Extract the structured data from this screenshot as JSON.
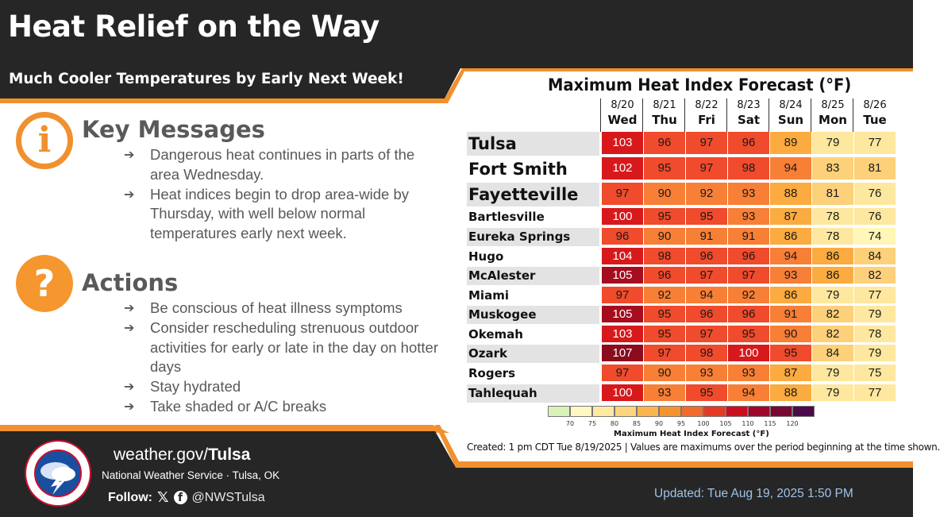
{
  "header": {
    "title": "Heat Relief on the Way",
    "subtitle": "Much Cooler Temperatures by Early Next Week!"
  },
  "key_messages": {
    "heading": "Key Messages",
    "icon": "info-icon",
    "icon_glyph": "i",
    "items": [
      "Dangerous heat continues in parts of the area Wednesday.",
      "Heat indices begin to drop area-wide by Thursday, with well below normal temperatures early next week."
    ]
  },
  "actions": {
    "heading": "Actions",
    "icon": "question-icon",
    "icon_glyph": "?",
    "items": [
      "Be conscious of heat illness symptoms",
      "Consider rescheduling strenuous outdoor activities for early or late in the day on hotter days",
      "Stay hydrated",
      "Take shaded or A/C breaks"
    ]
  },
  "chart_data": {
    "type": "table",
    "title": "Maximum Heat Index Forecast (°F)",
    "days": [
      {
        "date": "8/20",
        "dow": "Wed"
      },
      {
        "date": "8/21",
        "dow": "Thu"
      },
      {
        "date": "8/22",
        "dow": "Fri"
      },
      {
        "date": "8/23",
        "dow": "Sat"
      },
      {
        "date": "8/24",
        "dow": "Sun"
      },
      {
        "date": "8/25",
        "dow": "Mon"
      },
      {
        "date": "8/26",
        "dow": "Tue"
      }
    ],
    "rows": [
      {
        "city": "Tulsa",
        "values": [
          103,
          96,
          97,
          96,
          89,
          79,
          77
        ]
      },
      {
        "city": "Fort Smith",
        "values": [
          102,
          95,
          97,
          98,
          94,
          83,
          81
        ]
      },
      {
        "city": "Fayetteville",
        "values": [
          97,
          90,
          92,
          93,
          88,
          81,
          76
        ]
      },
      {
        "city": "Bartlesville",
        "values": [
          100,
          95,
          95,
          93,
          87,
          78,
          76
        ]
      },
      {
        "city": "Eureka Springs",
        "values": [
          96,
          90,
          91,
          91,
          86,
          78,
          74
        ]
      },
      {
        "city": "Hugo",
        "values": [
          104,
          98,
          96,
          96,
          94,
          86,
          84
        ]
      },
      {
        "city": "McAlester",
        "values": [
          105,
          96,
          97,
          97,
          93,
          86,
          82
        ]
      },
      {
        "city": "Miami",
        "values": [
          97,
          92,
          94,
          92,
          86,
          79,
          77
        ]
      },
      {
        "city": "Muskogee",
        "values": [
          105,
          95,
          96,
          96,
          91,
          82,
          79
        ]
      },
      {
        "city": "Okemah",
        "values": [
          103,
          95,
          97,
          95,
          90,
          82,
          78
        ]
      },
      {
        "city": "Ozark",
        "values": [
          107,
          97,
          98,
          100,
          95,
          84,
          79
        ]
      },
      {
        "city": "Rogers",
        "values": [
          97,
          90,
          93,
          93,
          87,
          79,
          75
        ]
      },
      {
        "city": "Tahlequah",
        "values": [
          100,
          93,
          95,
          94,
          88,
          79,
          77
        ]
      }
    ],
    "legend": {
      "caption": "Maximum Heat Index Forecast (°F)",
      "ticks": [
        "70",
        "75",
        "80",
        "85",
        "90",
        "95",
        "100",
        "105",
        "110",
        "115",
        "120"
      ],
      "colors": [
        "#d8f2b8",
        "#fff8c4",
        "#ffe9a0",
        "#fdd47e",
        "#fbb54f",
        "#f7932c",
        "#f26a2c",
        "#e63a24",
        "#cc0d1f",
        "#a0062c",
        "#7a0632",
        "#4d0a4a"
      ]
    },
    "note": "Created: 1 pm CDT Tue 8/19/2025 | Values are maximums over the period beginning at the time shown."
  },
  "footer": {
    "logo": "nws-logo",
    "site_prefix": "weather.gov/",
    "site_bold": "Tulsa",
    "office": "National Weather Service · Tulsa, OK",
    "follow_label": "Follow:",
    "x_icon": "x-icon",
    "facebook_icon": "facebook-icon",
    "handle": "@NWSTulsa",
    "updated": "Updated: Tue Aug 19, 2025 1:50 PM"
  },
  "colors": {
    "dark": "#262626",
    "orange_accent": "#f0902f",
    "text_gray": "#595959",
    "updated_blue": "#9fc3ea"
  }
}
